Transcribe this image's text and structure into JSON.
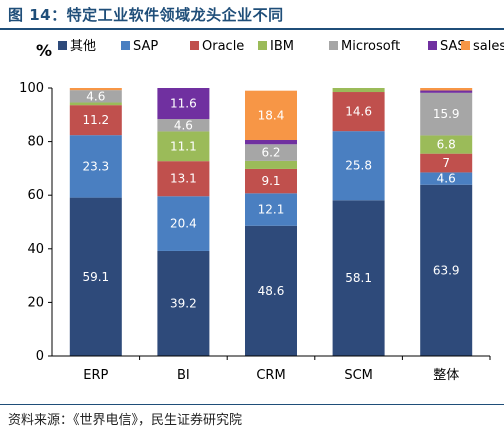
{
  "title": "图 14：特定工业软件领域龙头企业不同",
  "source": "资料来源：《世界电信》，民生证券研究院",
  "chart_data": {
    "type": "bar",
    "stacked": true,
    "unit_label": "%",
    "categories": [
      "ERP",
      "BI",
      "CRM",
      "SCM",
      "整体"
    ],
    "ylim": [
      0,
      100
    ],
    "yticks": [
      0,
      20,
      40,
      60,
      80,
      100
    ],
    "legend_position": "top",
    "series": [
      {
        "name": "其他",
        "color": "#2e4a7a",
        "values": [
          59.1,
          39.2,
          48.6,
          58.1,
          63.9
        ],
        "labels": [
          "59.1",
          "39.2",
          "48.6",
          "58.1",
          "63.9"
        ]
      },
      {
        "name": "SAP",
        "color": "#4a7fc1",
        "values": [
          23.3,
          20.4,
          12.1,
          25.8,
          4.6
        ],
        "labels": [
          "23.3",
          "20.4",
          "12.1",
          "25.8",
          "4.6"
        ]
      },
      {
        "name": "Oracle",
        "color": "#c0504d",
        "values": [
          11.2,
          13.1,
          9.1,
          14.6,
          7
        ],
        "labels": [
          "11.2",
          "13.1",
          "9.1",
          "14.6",
          "7"
        ]
      },
      {
        "name": "IBM",
        "color": "#9bbb59",
        "values": [
          1.0,
          11.1,
          3.0,
          1.5,
          6.8
        ],
        "labels": [
          "",
          "11.1",
          "",
          "",
          "6.8"
        ]
      },
      {
        "name": "Microsoft",
        "color": "#a6a6a6",
        "values": [
          4.6,
          4.6,
          6.2,
          0,
          15.9
        ],
        "labels": [
          "4.6",
          "4.6",
          "6.2",
          "",
          "15.9"
        ]
      },
      {
        "name": "SAS",
        "color": "#7030a0",
        "values": [
          0,
          11.6,
          1.6,
          0,
          0.9
        ],
        "labels": [
          "",
          "11.6",
          "",
          "",
          ""
        ]
      },
      {
        "name": "salesforce",
        "color": "#f79646",
        "values": [
          0.8,
          0,
          18.4,
          0,
          0.9
        ],
        "labels": [
          "",
          "",
          "18.4",
          "",
          ""
        ]
      }
    ]
  }
}
